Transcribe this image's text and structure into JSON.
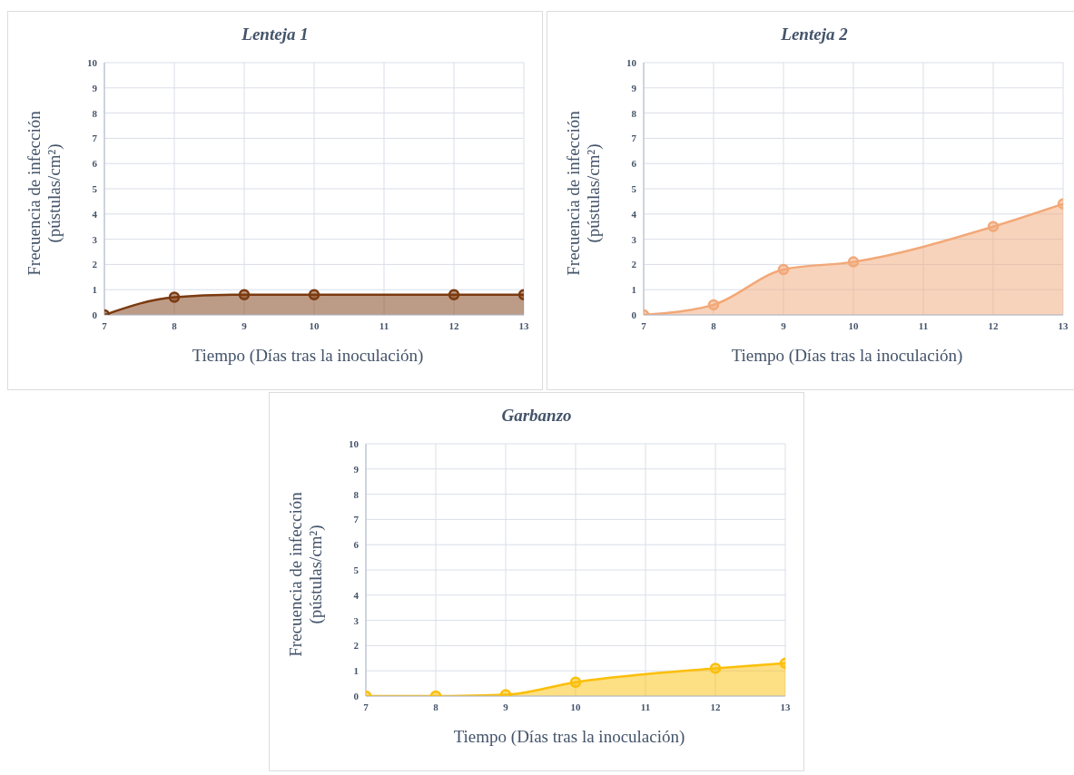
{
  "chart_data": [
    {
      "type": "area",
      "title": "Lenteja 1",
      "xlabel": "Tiempo (Días tras la inoculación)",
      "ylabel": "Frecuencia de infección\n(pústulas/cm²)",
      "x": [
        7,
        8,
        9,
        10,
        12,
        13
      ],
      "xlim": [
        7,
        13
      ],
      "xticks": [
        7,
        8,
        9,
        10,
        11,
        12,
        13
      ],
      "ylim": [
        0,
        10
      ],
      "yticks": [
        0,
        1,
        2,
        3,
        4,
        5,
        6,
        7,
        8,
        9,
        10
      ],
      "grid": true,
      "marker": "circle",
      "series": [
        {
          "color": "#7b3a10",
          "values": [
            0,
            0.7,
            0.8,
            0.8,
            0.8,
            0.8
          ]
        }
      ]
    },
    {
      "type": "area",
      "title": "Lenteja 2",
      "xlabel": "Tiempo (Días tras la inoculación)",
      "ylabel": "Frecuencia de infección\n(pústulas/cm²)",
      "x": [
        7,
        8,
        9,
        10,
        12,
        13
      ],
      "xlim": [
        7,
        13
      ],
      "xticks": [
        7,
        8,
        9,
        10,
        11,
        12,
        13
      ],
      "ylim": [
        0,
        10
      ],
      "yticks": [
        0,
        1,
        2,
        3,
        4,
        5,
        6,
        7,
        8,
        9,
        10
      ],
      "grid": true,
      "marker": "circle",
      "series": [
        {
          "color": "#f2a878",
          "values": [
            0,
            0.4,
            1.8,
            2.1,
            3.5,
            4.4
          ]
        }
      ]
    },
    {
      "type": "area",
      "title": "Garbanzo",
      "xlabel": "Tiempo (Días tras la inoculación)",
      "ylabel": "Frecuencia de infección\n(pústulas/cm²)",
      "x": [
        7,
        8,
        9,
        10,
        12,
        13
      ],
      "xlim": [
        7,
        13
      ],
      "xticks": [
        7,
        8,
        9,
        10,
        11,
        12,
        13
      ],
      "ylim": [
        0,
        10
      ],
      "yticks": [
        0,
        1,
        2,
        3,
        4,
        5,
        6,
        7,
        8,
        9,
        10
      ],
      "grid": true,
      "marker": "circle",
      "series": [
        {
          "color": "#fbbf0a",
          "values": [
            0,
            0,
            0.05,
            0.55,
            1.1,
            1.3
          ]
        }
      ]
    }
  ]
}
